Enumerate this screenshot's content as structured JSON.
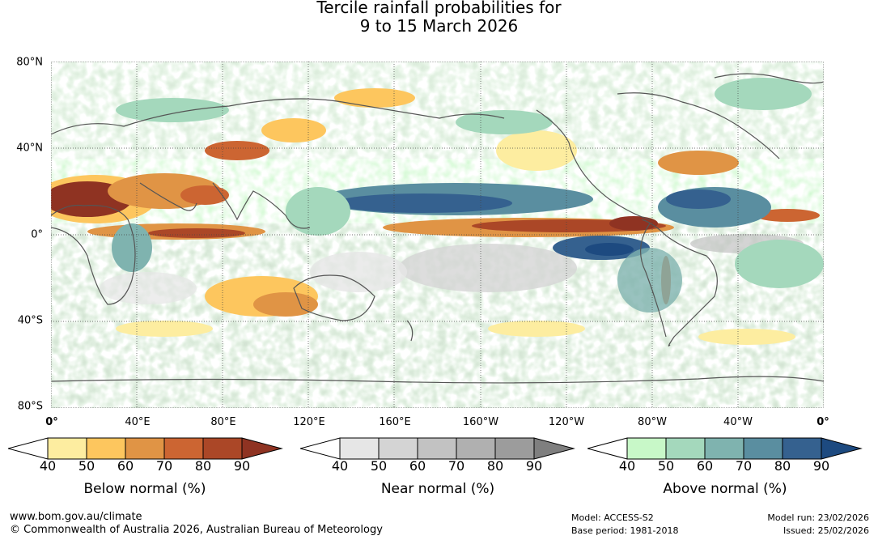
{
  "title": {
    "line1": "Tercile rainfall probabilities for",
    "line2": "9 to 15 March 2026"
  },
  "axes": {
    "latitudes": [
      "80°N",
      "40°N",
      "0°",
      "40°S",
      "80°S"
    ],
    "longitudes": [
      "0°",
      "40°E",
      "80°E",
      "120°E",
      "160°E",
      "160°W",
      "120°W",
      "80°W",
      "40°W",
      "0°"
    ]
  },
  "colorbars": [
    {
      "name": "below-normal",
      "title": "Below normal (%)",
      "ticks": [
        "40",
        "50",
        "60",
        "70",
        "80",
        "90"
      ],
      "colors": [
        "#ffffff",
        "#fdeda0",
        "#fdc65e",
        "#e09445",
        "#cc6532",
        "#ab4727",
        "#8f3322"
      ]
    },
    {
      "name": "near-normal",
      "title": "Near normal (%)",
      "ticks": [
        "40",
        "50",
        "60",
        "70",
        "80",
        "90"
      ],
      "colors": [
        "#ffffff",
        "#e6e6e6",
        "#d4d4d4",
        "#c2c2c2",
        "#b0b0b0",
        "#9c9c9c",
        "#7f7f7f"
      ]
    },
    {
      "name": "above-normal",
      "title": "Above normal (%)",
      "ticks": [
        "40",
        "50",
        "60",
        "70",
        "80",
        "90"
      ],
      "colors": [
        "#ffffff",
        "#c8f8c8",
        "#a4d8bc",
        "#7fb3af",
        "#5a8ea0",
        "#35618f",
        "#1d4a80"
      ]
    }
  ],
  "footer": {
    "url": "www.bom.gov.au/climate",
    "copyright": "© Commonwealth of Australia 2026, Australian Bureau of Meteorology",
    "model": "Model: ACCESS-S2",
    "base_period": "Base period: 1981-2018",
    "model_run": "Model run: 23/02/2026",
    "issued": "Issued: 25/02/2026"
  }
}
